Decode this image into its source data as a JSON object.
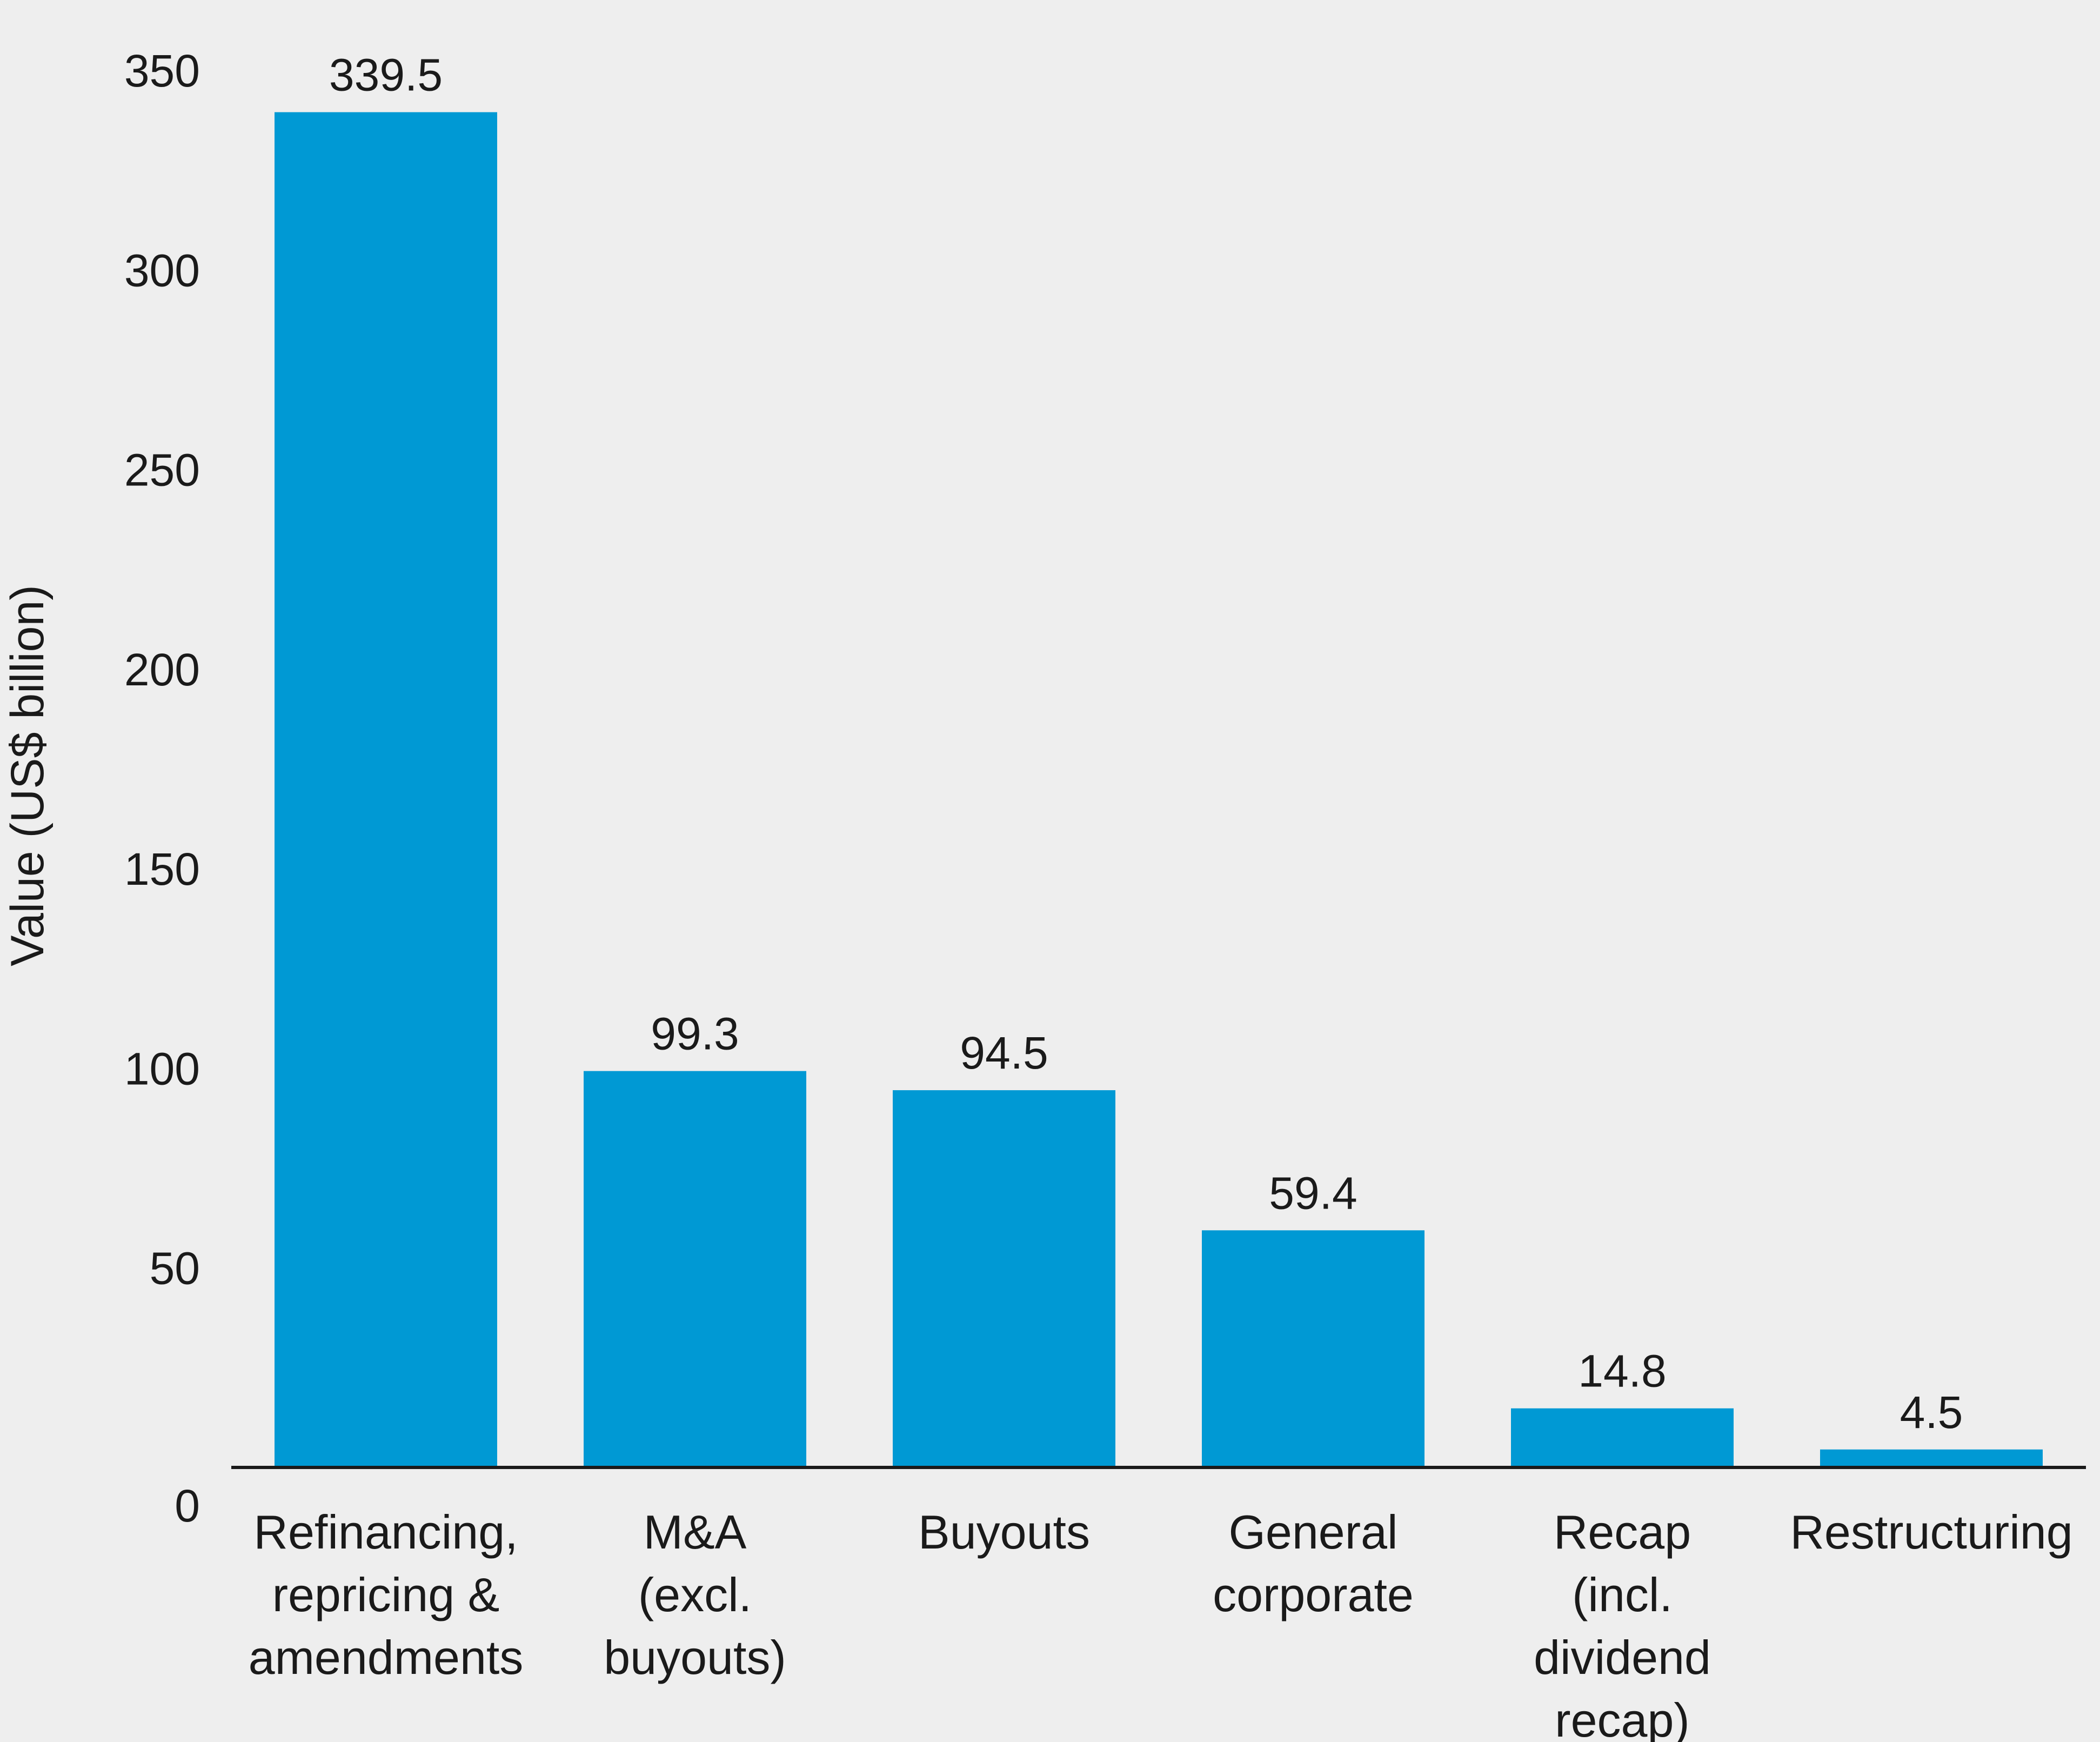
{
  "chart_data": {
    "type": "bar",
    "title": "",
    "xlabel": "",
    "ylabel": "Value (US$ billion)",
    "ylim": [
      0,
      350
    ],
    "yticks": [
      "0",
      "50",
      "100",
      "150",
      "200",
      "250",
      "300",
      "350"
    ],
    "categories": [
      [
        "Refinancing,",
        "repricing &",
        "amendments"
      ],
      [
        "M&A",
        "(excl.",
        "buyouts)"
      ],
      [
        "Buyouts"
      ],
      [
        "General",
        "corporate"
      ],
      [
        "Recap",
        "(incl.",
        "dividend",
        "recap)"
      ],
      [
        "Restructuring"
      ]
    ],
    "values": [
      339.5,
      99.3,
      94.5,
      59.4,
      14.8,
      4.5
    ],
    "value_labels": [
      "339.5",
      "99.3",
      "94.5",
      "59.4",
      "14.8",
      "4.5"
    ],
    "bar_color": "#0099d4",
    "axis_color": "#1a1a1a",
    "background": "#eeeeee",
    "grid": false,
    "legend": "none"
  }
}
